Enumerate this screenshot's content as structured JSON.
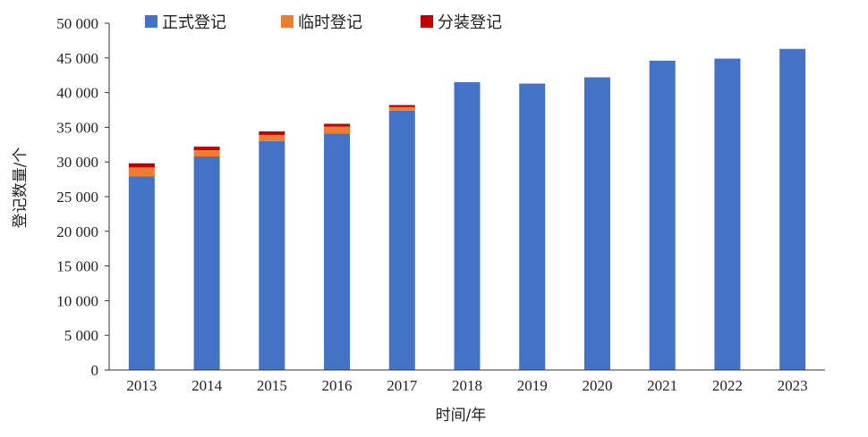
{
  "chart_data": {
    "type": "bar",
    "stacked": true,
    "categories": [
      "2013",
      "2014",
      "2015",
      "2016",
      "2017",
      "2018",
      "2019",
      "2020",
      "2021",
      "2022",
      "2023"
    ],
    "series": [
      {
        "name": "正式登记",
        "color": "#4472C4",
        "values": [
          27900,
          30800,
          33000,
          34100,
          37400,
          41500,
          41300,
          42200,
          44600,
          44900,
          46300
        ]
      },
      {
        "name": "临时登记",
        "color": "#ED7D31",
        "values": [
          1300,
          900,
          900,
          1000,
          500,
          0,
          0,
          0,
          0,
          0,
          0
        ]
      },
      {
        "name": "分装登记",
        "color": "#C00000",
        "values": [
          600,
          500,
          500,
          400,
          300,
          0,
          0,
          0,
          0,
          0,
          0
        ]
      }
    ],
    "xlabel": "时间/年",
    "ylabel": "登记数量/个",
    "ylim": [
      0,
      50000
    ],
    "yticks": [
      0,
      5000,
      10000,
      15000,
      20000,
      25000,
      30000,
      35000,
      40000,
      45000,
      50000
    ],
    "ytick_labels": [
      "0",
      "5 000",
      "10 000",
      "15 000",
      "20 000",
      "25 000",
      "30 000",
      "35 000",
      "40 000",
      "45 000",
      "50 000"
    ],
    "grid": false,
    "legend_position": "top"
  }
}
